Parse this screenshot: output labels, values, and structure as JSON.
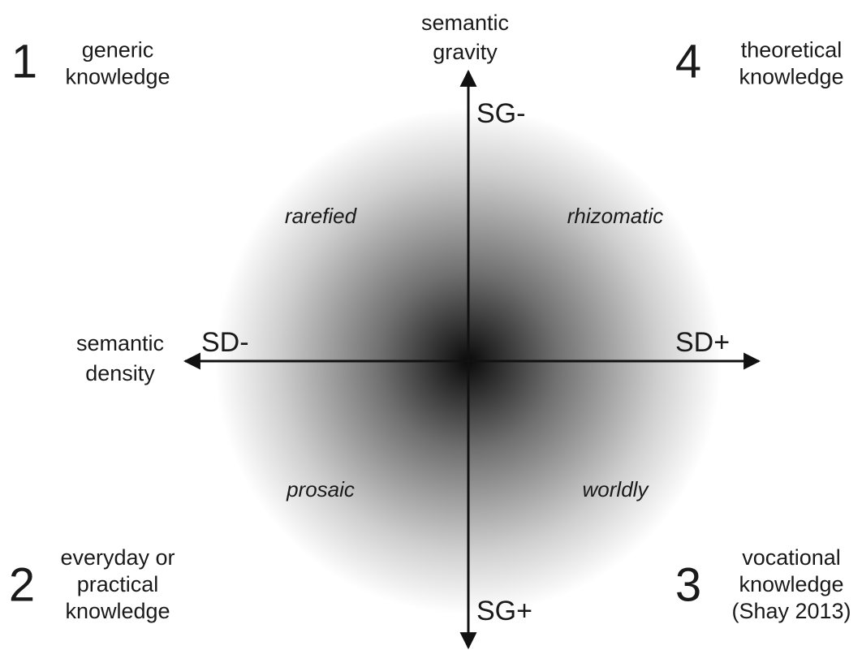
{
  "axes": {
    "vertical": {
      "label": [
        "semantic",
        "gravity"
      ],
      "top": "SG-",
      "bottom": "SG+"
    },
    "horizontal": {
      "label": [
        "semantic",
        "density"
      ],
      "left": "SD-",
      "right": "SD+"
    }
  },
  "quadrants": {
    "top_left": "rarefied",
    "top_right": "rhizomatic",
    "bottom_left": "prosaic",
    "bottom_right": "worldly"
  },
  "corners": [
    {
      "number": "1",
      "lines": [
        "generic",
        "knowledge"
      ]
    },
    {
      "number": "4",
      "lines": [
        "theoretical",
        "knowledge"
      ]
    },
    {
      "number": "2",
      "lines": [
        "everyday or",
        "practical",
        "knowledge"
      ]
    },
    {
      "number": "3",
      "lines": [
        "vocational",
        "knowledge",
        "(Shay 2013)"
      ]
    }
  ]
}
